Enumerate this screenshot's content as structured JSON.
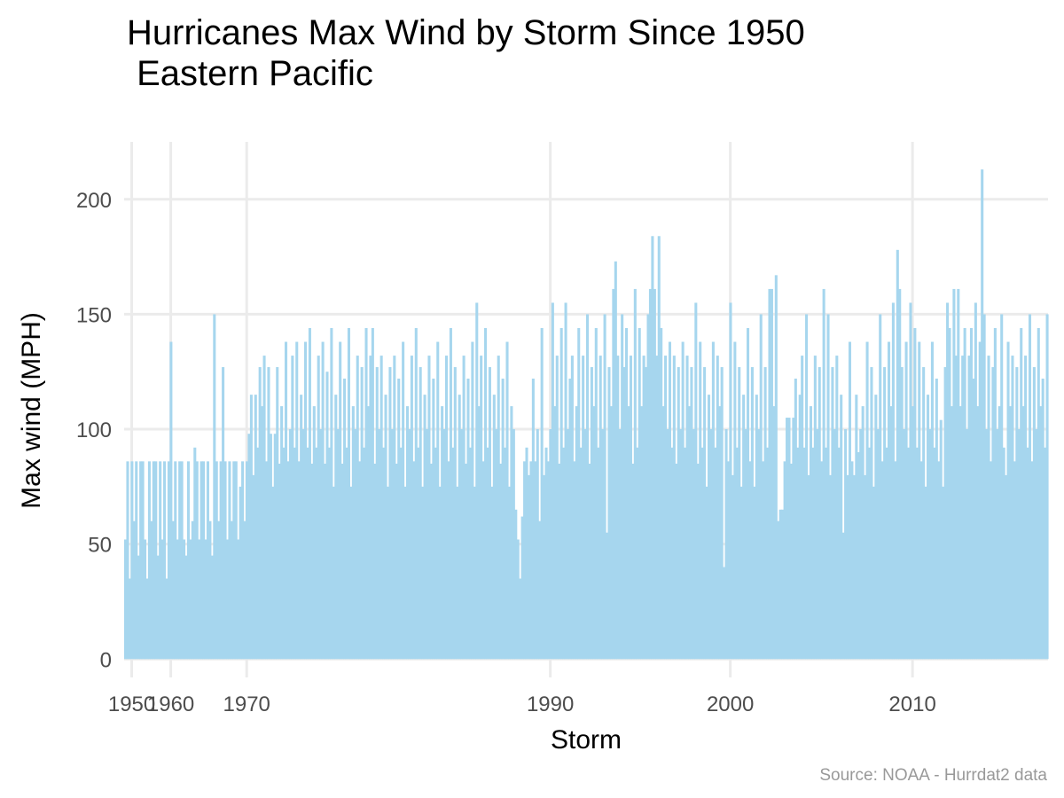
{
  "chart_data": {
    "type": "bar",
    "title_line1": "Hurricanes Max Wind by Storm Since 1950",
    "title_line2": " Eastern Pacific",
    "xlabel": "Storm",
    "ylabel": "Max wind (MPH)",
    "caption": "Source: NOAA - Hurrdat2 data",
    "ylim": [
      -8,
      225
    ],
    "y_ticks": [
      0,
      50,
      100,
      150,
      200
    ],
    "x_ticks": [
      "1950",
      "1960",
      "1970",
      "1990",
      "2000",
      "2010"
    ],
    "x_tick_storm_index": [
      3,
      21,
      56,
      196,
      279,
      363
    ],
    "storm_count": 426,
    "grid": true,
    "bar_color": "#a6d6ee",
    "grid_color": "#ebebeb",
    "segments": [
      {
        "from": 0,
        "to": 21,
        "values": [
          52,
          86,
          35,
          86,
          60,
          86,
          45,
          86,
          86,
          52,
          35,
          86,
          60,
          86,
          86,
          45,
          86,
          52,
          86,
          35,
          86
        ]
      },
      {
        "from": 21,
        "to": 42,
        "values": [
          138,
          60,
          86,
          52,
          86,
          86,
          52,
          45,
          86,
          52,
          60,
          92,
          86,
          52,
          86,
          86,
          52,
          86,
          60,
          45,
          150
        ]
      },
      {
        "from": 42,
        "to": 56,
        "values": [
          86,
          60,
          86,
          127,
          86,
          52,
          86,
          60,
          86,
          86,
          52,
          75,
          86,
          60
        ]
      },
      {
        "from": 56,
        "to": 110,
        "values": [
          86,
          98,
          115,
          80,
          115,
          92,
          127,
          110,
          132,
          86,
          127,
          98,
          75,
          98,
          127,
          85,
          110,
          92,
          138,
          86,
          100,
          132,
          92,
          138,
          86,
          115,
          100,
          138,
          92,
          144,
          85,
          110,
          92,
          132,
          100,
          138,
          85,
          125,
          92,
          144,
          75,
          115,
          100,
          138,
          85,
          122,
          92,
          144,
          75,
          110,
          100,
          132,
          86,
          127
        ]
      },
      {
        "from": 110,
        "to": 182,
        "values": [
          92,
          144,
          110,
          132,
          144,
          85,
          127,
          100,
          132,
          92,
          115,
          75,
          127,
          100,
          132,
          85,
          122,
          92,
          138,
          75,
          110,
          100,
          132,
          86,
          144,
          92,
          127,
          75,
          115,
          100,
          132,
          85,
          122,
          92,
          138,
          75,
          110,
          100,
          132,
          86,
          144,
          92,
          127,
          75,
          115,
          100,
          132,
          85,
          122,
          92,
          138,
          75,
          155,
          110,
          132,
          86,
          144,
          92,
          127,
          75,
          115,
          100,
          132,
          85,
          122,
          92,
          138,
          75,
          110,
          100,
          65,
          52
        ]
      },
      {
        "from": 182,
        "to": 196,
        "values": [
          35,
          62,
          86,
          92,
          80,
          86,
          122,
          86,
          100,
          60,
          144,
          80,
          92,
          86
        ]
      },
      {
        "from": 196,
        "to": 279,
        "values": [
          100,
          155,
          110,
          132,
          85,
          144,
          92,
          155,
          100,
          122,
          132,
          86,
          110,
          144,
          92,
          132,
          100,
          150,
          85,
          127,
          110,
          144,
          92,
          132,
          100,
          150,
          55,
          127,
          110,
          161,
          173,
          132,
          100,
          150,
          127,
          144,
          110,
          132,
          85,
          161,
          92,
          144,
          110,
          132,
          127,
          150,
          161,
          184,
          161,
          132,
          184,
          144,
          110,
          132,
          100,
          138,
          92,
          132,
          85,
          127,
          100,
          138,
          92,
          132,
          110,
          127,
          100,
          155,
          85,
          138,
          92,
          127,
          75,
          115,
          100,
          138,
          92,
          132,
          110,
          127,
          40,
          100,
          86
        ]
      },
      {
        "from": 279,
        "to": 363,
        "values": [
          155,
          80,
          138,
          92,
          127,
          75,
          115,
          100,
          144,
          86,
          127,
          75,
          115,
          100,
          150,
          86,
          127,
          92,
          161,
          161,
          110,
          167,
          60,
          65,
          65,
          86,
          105,
          105,
          85,
          105,
          122,
          92,
          115,
          132,
          92,
          150,
          80,
          110,
          92,
          132,
          100,
          127,
          86,
          161,
          92,
          150,
          80,
          127,
          100,
          132,
          92,
          115,
          55,
          100,
          80,
          138,
          86,
          80,
          115,
          90,
          100,
          110,
          80,
          138,
          92,
          127,
          75,
          115,
          100,
          150,
          86,
          127,
          92,
          138,
          110,
          155,
          86,
          178,
          161,
          127,
          100,
          138,
          92,
          155
        ]
      },
      {
        "from": 363,
        "to": 426,
        "values": [
          110,
          144,
          92,
          138,
          86,
          127,
          75,
          115,
          100,
          138,
          92,
          122,
          86,
          104,
          75,
          127,
          155,
          144,
          110,
          161,
          132,
          161,
          110,
          132,
          144,
          100,
          132,
          144,
          122,
          155,
          110,
          138,
          213,
          150,
          100,
          132,
          86,
          127,
          144,
          100,
          110,
          150,
          92,
          80,
          138,
          110,
          132,
          86,
          127,
          100,
          144,
          110,
          132,
          92,
          150,
          86,
          127,
          100,
          144,
          110,
          122,
          92,
          150
        ]
      }
    ]
  }
}
